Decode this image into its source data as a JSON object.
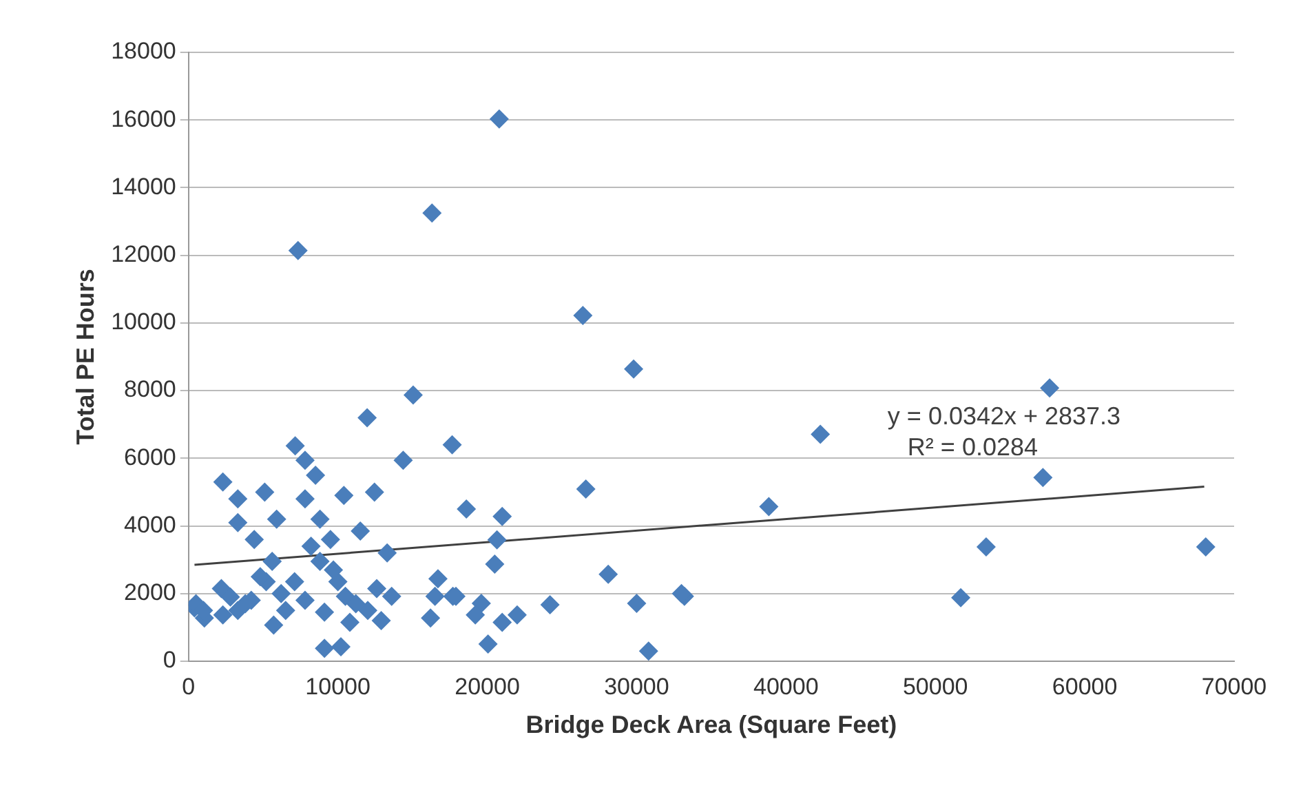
{
  "chart_data": {
    "type": "scatter",
    "xlabel": "Bridge Deck Area (Square Feet)",
    "ylabel": "Total PE Hours",
    "xlim": [
      0,
      70000
    ],
    "xticks": [
      0,
      10000,
      20000,
      30000,
      40000,
      50000,
      60000,
      70000
    ],
    "ylim": [
      0,
      18000
    ],
    "yticks": [
      0,
      2000,
      4000,
      6000,
      8000,
      10000,
      12000,
      14000,
      16000,
      18000
    ],
    "grid": "y",
    "legend": false,
    "marker": "diamond",
    "series": [
      {
        "color": "#4a7ebb",
        "x": [
          7330,
          16300,
          20800,
          26400,
          29800,
          15040,
          11960,
          7140,
          7800,
          8500,
          14370,
          17650,
          2300,
          5100,
          3300,
          7800,
          10400,
          12450,
          5900,
          3300,
          8800,
          11500,
          4400,
          9500,
          13300,
          5600,
          8800,
          7100,
          10000,
          12600,
          16700,
          400,
          2200,
          2300,
          4200,
          5700,
          7800,
          9100,
          10500,
          12000,
          13600,
          16200,
          17700,
          9100,
          10200,
          1060,
          3300,
          5200,
          500,
          1000,
          26600,
          18600,
          21000,
          20650,
          20500,
          28100,
          16500,
          17900,
          19600,
          19200,
          21000,
          22000,
          24200,
          30000,
          33200,
          33000,
          20050,
          30800,
          42300,
          38850,
          57650,
          57200,
          53400,
          51700,
          68100,
          6500,
          3800,
          9700,
          11200,
          4800,
          8200,
          6200,
          2800,
          12900,
          10800
        ],
        "values": [
          12140,
          13250,
          16030,
          10220,
          8640,
          7870,
          7200,
          6370,
          5940,
          5500,
          5940,
          6400,
          5300,
          5000,
          4800,
          4800,
          4900,
          5000,
          4200,
          4100,
          4200,
          3850,
          3600,
          3600,
          3200,
          2950,
          2950,
          2350,
          2350,
          2150,
          2440,
          1580,
          2150,
          1370,
          1800,
          1070,
          1800,
          1450,
          1920,
          1500,
          1920,
          1280,
          1920,
          380,
          430,
          1280,
          1500,
          2350,
          1700,
          1500,
          5090,
          4500,
          4280,
          3590,
          2870,
          2570,
          1920,
          1920,
          1710,
          1370,
          1150,
          1370,
          1670,
          1710,
          1920,
          2000,
          510,
          300,
          6710,
          4570,
          8080,
          5430,
          3380,
          1880,
          3380,
          1500,
          1700,
          2700,
          1700,
          2500,
          3400,
          2000,
          1900,
          1200,
          1150
        ]
      },
      {
        "type": "line",
        "color": "#404040",
        "marker": "none",
        "x": [
          400,
          68000
        ],
        "values": [
          2850,
          5160
        ]
      }
    ],
    "annotations": [
      "y = 0.0342x + 2837.3",
      "R² = 0.0284"
    ]
  }
}
